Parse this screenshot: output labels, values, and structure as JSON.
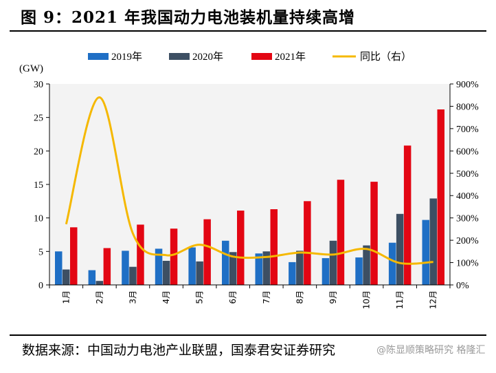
{
  "figure": {
    "title": "图 9：2021 年我国动力电池装机量持续高增",
    "source": "数据来源：中国动力电池产业联盟，国泰君安证券研究",
    "watermark": "@陈显顺策略研究 格隆汇"
  },
  "chart_data": {
    "type": "bar",
    "categories": [
      "1月",
      "2月",
      "3月",
      "4月",
      "5月",
      "6月",
      "7月",
      "8月",
      "9月",
      "10月",
      "11月",
      "12月"
    ],
    "series": [
      {
        "name": "2019年",
        "type": "bar",
        "axis": "left",
        "color": "#1f6fc5",
        "values": [
          5.0,
          2.2,
          5.1,
          5.4,
          5.6,
          6.6,
          4.7,
          3.4,
          4.0,
          4.1,
          6.3,
          9.7
        ]
      },
      {
        "name": "2020年",
        "type": "bar",
        "axis": "left",
        "color": "#3d4f63",
        "values": [
          2.3,
          0.6,
          2.7,
          3.6,
          3.5,
          4.9,
          5.0,
          5.1,
          6.6,
          5.9,
          10.6,
          12.9
        ]
      },
      {
        "name": "2021年",
        "type": "bar",
        "axis": "left",
        "color": "#e30613",
        "values": [
          8.6,
          5.5,
          9.0,
          8.4,
          9.8,
          11.1,
          11.3,
          12.5,
          15.7,
          15.4,
          20.8,
          26.2
        ]
      },
      {
        "name": "同比（右）",
        "type": "line",
        "axis": "right",
        "color": "#f5b800",
        "values": [
          272,
          840,
          230,
          133,
          180,
          127,
          125,
          145,
          136,
          161,
          98,
          103
        ]
      }
    ],
    "ylabel": "(GW)",
    "ylim": [
      0,
      30
    ],
    "yticks": [
      0,
      5,
      10,
      15,
      20,
      25,
      30
    ],
    "y2lim": [
      0,
      900
    ],
    "y2ticks": [
      "0%",
      "100%",
      "200%",
      "300%",
      "400%",
      "500%",
      "600%",
      "700%",
      "800%",
      "900%"
    ],
    "legend_position": "top",
    "grid": false
  }
}
